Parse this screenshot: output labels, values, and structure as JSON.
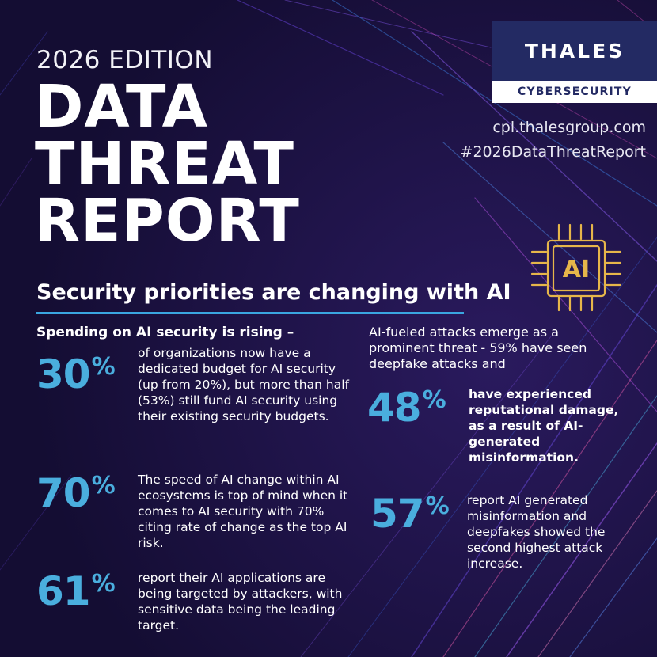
{
  "header": {
    "edition": "2026 EDITION",
    "title_lines": [
      "DATA",
      "THREAT",
      "REPORT"
    ]
  },
  "brand": {
    "name": "THALES",
    "division": "CYBERSECURITY",
    "url": "cpl.thalesgroup.com",
    "hashtag": "#2026DataThreatReport",
    "chip_label": "AI"
  },
  "section": {
    "heading": "Security priorities are changing with AI",
    "left_subhead": "Spending on AI security is rising –",
    "right_intro": "AI-fueled attacks emerge as a prominent threat - 59% have seen deepfake attacks and"
  },
  "stats": [
    {
      "number": "30",
      "unit": "%",
      "text": "of organizations now have a dedicated budget for AI security (up from 20%), but more than half (53%) still fund AI security using their existing security budgets."
    },
    {
      "number": "70",
      "unit": "%",
      "text": "The speed of AI change within AI ecosystems is top of mind when it comes to AI security with 70% citing rate of change as the top AI risk."
    },
    {
      "number": "61",
      "unit": "%",
      "text": "report their AI applications are being targeted by attackers, with sensitive data being the leading target."
    },
    {
      "number": "48",
      "unit": "%",
      "text": "have experienced reputational damage, as a result of AI-generated misinformation."
    },
    {
      "number": "57",
      "unit": "%",
      "text": "report AI generated misinformation and deepfakes showed the second highest attack increase."
    }
  ],
  "colors": {
    "background": "#140d33",
    "accent": "#4aaede",
    "logo_navy": "#232a63"
  }
}
